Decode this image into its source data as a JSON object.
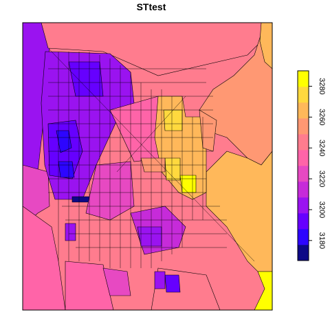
{
  "title": "STtest",
  "palette": [
    "#0D0887",
    "#2D05FF",
    "#6600FF",
    "#9A13F0",
    "#C62BD9",
    "#E749C2",
    "#FF64A8",
    "#FF7C8E",
    "#FF9873",
    "#FFB85A",
    "#FFD93E",
    "#FFFF00"
  ],
  "legend": {
    "min": 3167,
    "max": 3290,
    "tick_values": [
      3180,
      3200,
      3220,
      3240,
      3260,
      3280
    ],
    "tick_labels": [
      "3180",
      "3200",
      "3220",
      "3240",
      "3260",
      "3280"
    ]
  }
}
